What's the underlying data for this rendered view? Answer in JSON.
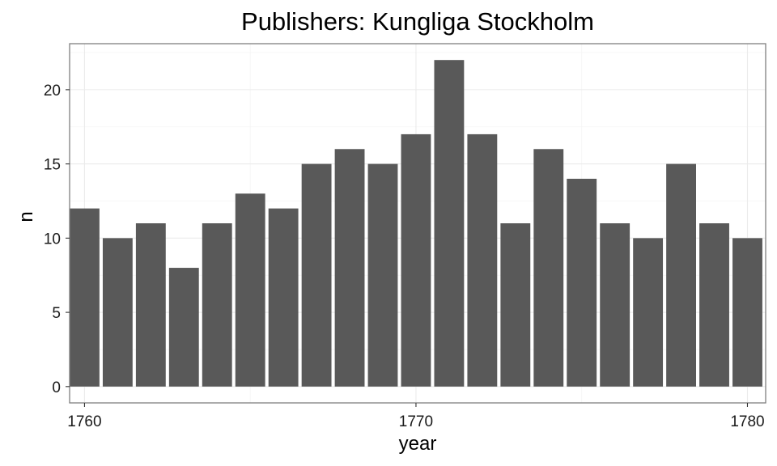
{
  "chart_data": {
    "type": "bar",
    "title": "Publishers: Kungliga Stockholm",
    "xlabel": "year",
    "ylabel": "n",
    "x": [
      1760,
      1761,
      1762,
      1763,
      1764,
      1765,
      1766,
      1767,
      1768,
      1769,
      1770,
      1771,
      1772,
      1773,
      1774,
      1775,
      1776,
      1777,
      1778,
      1779,
      1780
    ],
    "values": [
      12,
      10,
      11,
      8,
      11,
      13,
      12,
      15,
      16,
      15,
      17,
      22,
      17,
      11,
      16,
      14,
      11,
      10,
      15,
      11,
      10
    ],
    "xlim": [
      1759.55,
      1780.55
    ],
    "ylim": [
      -1.1,
      23.1
    ],
    "x_ticks": [
      1760,
      1770,
      1780
    ],
    "y_ticks": [
      0,
      5,
      10,
      15,
      20
    ],
    "grid": true,
    "legend": "none",
    "bar_color": "#595959"
  }
}
